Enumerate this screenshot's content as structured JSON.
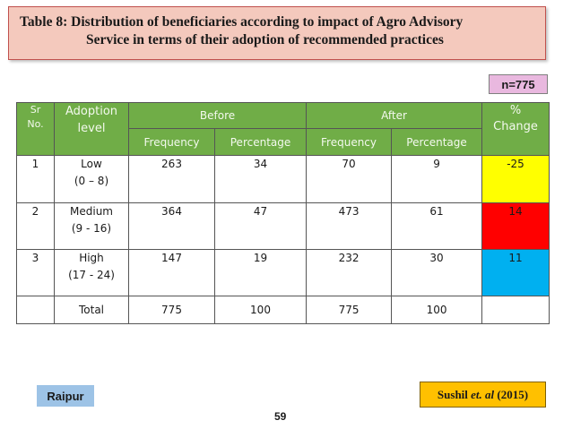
{
  "title": {
    "line1": "Table 8: Distribution of beneficiaries  according to impact  of  Agro Advisory",
    "line2": "Service in terms of their adoption of   recommended practices"
  },
  "sample_size": "n=775",
  "table": {
    "headers": {
      "sr": "Sr",
      "no": "No.",
      "adoption": "Adoption level",
      "before": "Before",
      "after": "After",
      "pct": "%",
      "change": "Change",
      "frequency": "Frequency",
      "percentage": "Percentage"
    },
    "rows": [
      {
        "sr": "1",
        "level": "Low",
        "range": "(0 – 8)",
        "before_freq": "263",
        "before_pct": "34",
        "after_freq": "70",
        "after_pct": "9",
        "change": "-25",
        "color": "#ffff00"
      },
      {
        "sr": "2",
        "level": "Medium",
        "range": "(9 - 16)",
        "before_freq": "364",
        "before_pct": "47",
        "after_freq": "473",
        "after_pct": "61",
        "change": "14",
        "color": "#ff0000"
      },
      {
        "sr": "3",
        "level": "High",
        "range": "(17 - 24)",
        "before_freq": "147",
        "before_pct": "19",
        "after_freq": "232",
        "after_pct": "30",
        "change": "11",
        "color": "#00b0f0"
      }
    ],
    "total": {
      "label": "Total",
      "before_freq": "775",
      "before_pct": "100",
      "after_freq": "775",
      "after_pct": "100"
    }
  },
  "location": "Raipur",
  "page_number": "59",
  "citation": {
    "author": "Sushil ",
    "etal": "et. al",
    "year": " (2015)"
  }
}
